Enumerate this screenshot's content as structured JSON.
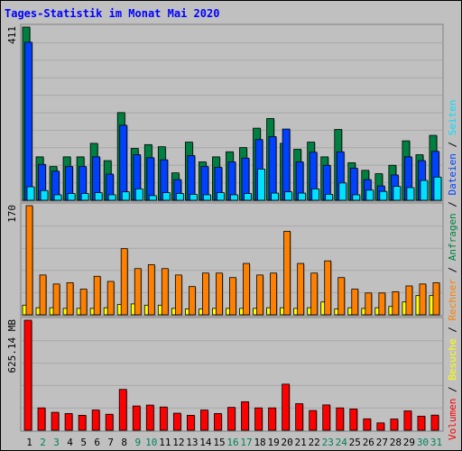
{
  "title": "Tages-Statistik im Monat Mai 2020",
  "colors": {
    "background": "#c0c0c0",
    "title": "#0000ff",
    "hits": "#008040",
    "files": "#0040ff",
    "pages": "#00e0ff",
    "visits": "#ffff00",
    "sites": "#ff8000",
    "kbytes": "#ff0000",
    "weekend_label": "#00805c",
    "weekday_label": "#000000"
  },
  "labels": {
    "top_max": "411",
    "mid_max": "170",
    "bottom_max": "625.14 MB"
  },
  "right_legend": {
    "top": [
      {
        "text": "Anfragen",
        "color": "#008040"
      },
      {
        "text": "Dateien",
        "color": "#0040ff"
      },
      {
        "text": "Seiten",
        "color": "#00e0ff"
      }
    ],
    "mid": [
      {
        "text": "Besuche",
        "color": "#ffff00"
      },
      {
        "text": "Rechner",
        "color": "#ff8000"
      }
    ],
    "bottom": [
      {
        "text": "Volumen",
        "color": "#ff0000"
      }
    ],
    "separator": "/"
  },
  "chart_data": {
    "type": "bar",
    "title": "Tages-Statistik im Monat Mai 2020",
    "categories": [
      "1",
      "2",
      "3",
      "4",
      "5",
      "6",
      "7",
      "8",
      "9",
      "10",
      "11",
      "12",
      "13",
      "14",
      "15",
      "16",
      "17",
      "18",
      "19",
      "20",
      "21",
      "22",
      "23",
      "24",
      "25",
      "26",
      "27",
      "28",
      "29",
      "30",
      "31"
    ],
    "weekend": [
      "2",
      "3",
      "9",
      "10",
      "16",
      "17",
      "23",
      "24",
      "30",
      "31"
    ],
    "panels": [
      {
        "id": "top",
        "ymax": 411,
        "max_label": "411",
        "series": [
          {
            "name": "Anfragen",
            "color": "#008040",
            "values": [
              411,
              103,
              80,
              103,
              103,
              135,
              94,
              208,
              123,
              132,
              127,
              65,
              138,
              91,
              103,
              115,
              125,
              171,
              194,
              135,
              121,
              138,
              103,
              168,
              89,
              71,
              63,
              83,
              141,
              108,
              154
            ]
          },
          {
            "name": "Dateien",
            "color": "#0040ff",
            "values": [
              375,
              85,
              69,
              80,
              80,
              103,
              62,
              178,
              108,
              101,
              96,
              49,
              106,
              80,
              78,
              91,
              100,
              144,
              151,
              169,
              91,
              114,
              83,
              115,
              76,
              49,
              34,
              60,
              103,
              94,
              116
            ]
          },
          {
            "name": "Seiten",
            "color": "#00e0ff",
            "values": [
              32,
              23,
              13,
              16,
              16,
              18,
              13,
              20,
              27,
              11,
              18,
              16,
              14,
              13,
              18,
              13,
              16,
              74,
              17,
              20,
              17,
              27,
              14,
              41,
              13,
              24,
              21,
              33,
              30,
              47,
              55
            ]
          }
        ]
      },
      {
        "id": "mid",
        "ymax": 170,
        "max_label": "170",
        "series": [
          {
            "name": "Besuche",
            "color": "#ffff00",
            "values": [
              15,
              11,
              11,
              10,
              10,
              10,
              11,
              16,
              17,
              15,
              15,
              10,
              9,
              9,
              10,
              10,
              10,
              10,
              11,
              11,
              10,
              11,
              20,
              9,
              11,
              10,
              11,
              13,
              20,
              30,
              30
            ]
          },
          {
            "name": "Rechner",
            "color": "#ff8000",
            "values": [
              170,
              62,
              48,
              50,
              40,
              60,
              52,
              103,
              72,
              78,
              72,
              62,
              44,
              65,
              65,
              58,
              80,
              62,
              65,
              130,
              80,
              65,
              84,
              58,
              40,
              34,
              34,
              36,
              45,
              48,
              50
            ]
          }
        ]
      },
      {
        "id": "bottom",
        "ymax": 625.14,
        "max_label": "625.14 MB",
        "series": [
          {
            "name": "Volumen",
            "color": "#ff0000",
            "values": [
              625.14,
              127,
              102,
              95,
              85,
              115,
              91,
              232,
              138,
              143,
              132,
              97,
              85,
              115,
              95,
              130,
              162,
              127,
              127,
              262,
              151,
              112,
              144,
              127,
              121,
              65,
              42,
              64,
              110,
              80,
              86
            ]
          }
        ]
      }
    ]
  }
}
